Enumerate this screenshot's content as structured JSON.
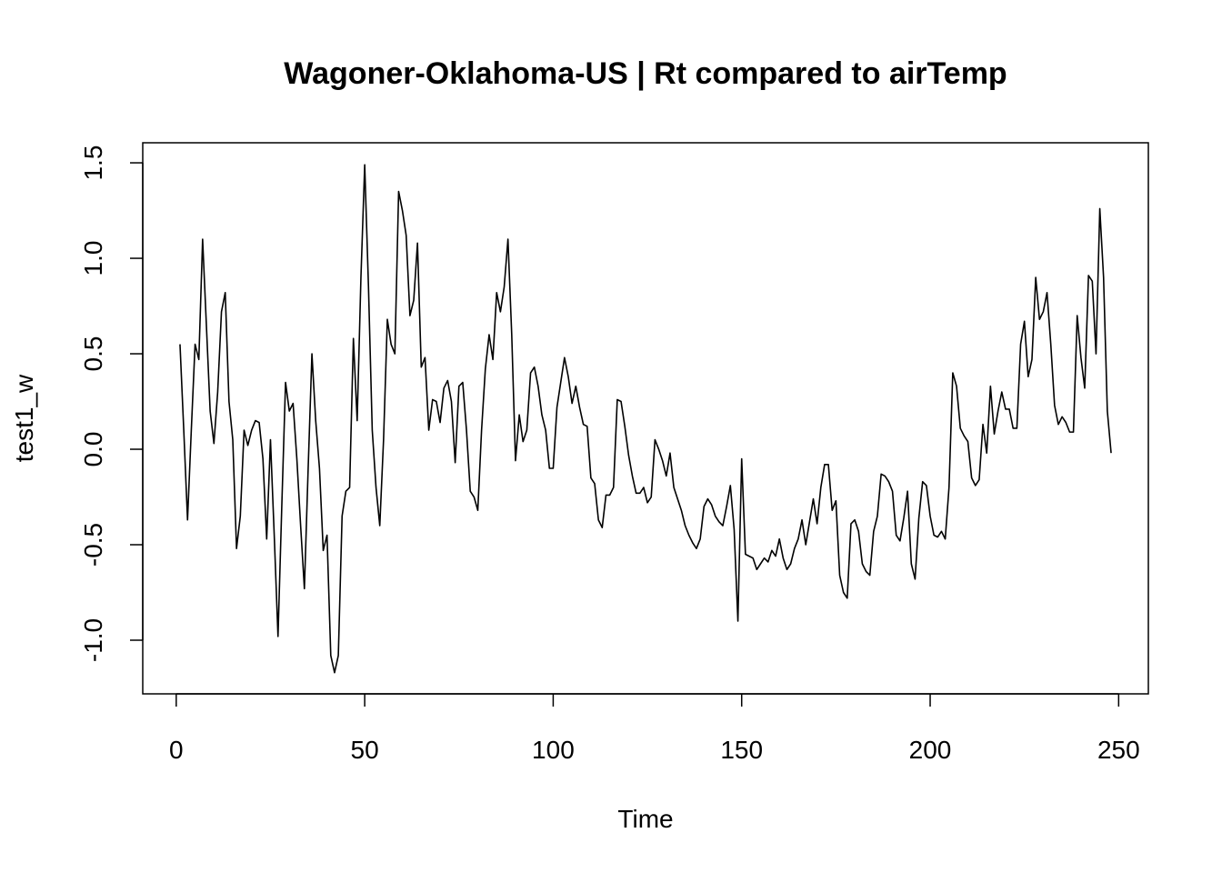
{
  "chart_data": {
    "type": "line",
    "title": "Wagoner-Oklahoma-US | Rt compared to airTemp",
    "x_label": "Time",
    "y_label": "test1_w",
    "color": "#000000",
    "x": [
      1,
      2,
      3,
      4,
      5,
      6,
      7,
      8,
      9,
      10,
      11,
      12,
      13,
      14,
      15,
      16,
      17,
      18,
      19,
      20,
      21,
      22,
      23,
      24,
      25,
      26,
      27,
      28,
      29,
      30,
      31,
      32,
      33,
      34,
      35,
      36,
      37,
      38,
      39,
      40,
      41,
      42,
      43,
      44,
      45,
      46,
      47,
      48,
      49,
      50,
      51,
      52,
      53,
      54,
      55,
      56,
      57,
      58,
      59,
      60,
      61,
      62,
      63,
      64,
      65,
      66,
      67,
      68,
      69,
      70,
      71,
      72,
      73,
      74,
      75,
      76,
      77,
      78,
      79,
      80,
      81,
      82,
      83,
      84,
      85,
      86,
      87,
      88,
      89,
      90,
      91,
      92,
      93,
      94,
      95,
      96,
      97,
      98,
      99,
      100,
      101,
      102,
      103,
      104,
      105,
      106,
      107,
      108,
      109,
      110,
      111,
      112,
      113,
      114,
      115,
      116,
      117,
      118,
      119,
      120,
      121,
      122,
      123,
      124,
      125,
      126,
      127,
      128,
      129,
      130,
      131,
      132,
      133,
      134,
      135,
      136,
      137,
      138,
      139,
      140,
      141,
      142,
      143,
      144,
      145,
      146,
      147,
      148,
      149,
      150,
      151,
      152,
      153,
      154,
      155,
      156,
      157,
      158,
      159,
      160,
      161,
      162,
      163,
      164,
      165,
      166,
      167,
      168,
      169,
      170,
      171,
      172,
      173,
      174,
      175,
      176,
      177,
      178,
      179,
      180,
      181,
      182,
      183,
      184,
      185,
      186,
      187,
      188,
      189,
      190,
      191,
      192,
      193,
      194,
      195,
      196,
      197,
      198,
      199,
      200,
      201,
      202,
      203,
      204,
      205,
      206,
      207,
      208,
      209,
      210,
      211,
      212,
      213,
      214,
      215,
      216,
      217,
      218,
      219,
      220,
      221,
      222,
      223,
      224,
      225,
      226,
      227,
      228,
      229,
      230,
      231,
      232,
      233,
      234,
      235,
      236,
      237,
      238,
      239,
      240,
      241,
      242,
      243,
      244,
      245,
      246,
      247,
      248
    ],
    "values": [
      0.55,
      0.1,
      -0.37,
      0.1,
      0.55,
      0.47,
      1.1,
      0.65,
      0.2,
      0.03,
      0.3,
      0.72,
      0.82,
      0.25,
      0.05,
      -0.52,
      -0.35,
      0.1,
      0.02,
      0.1,
      0.15,
      0.14,
      -0.05,
      -0.47,
      0.05,
      -0.45,
      -0.98,
      -0.3,
      0.35,
      0.2,
      0.24,
      -0.05,
      -0.4,
      -0.73,
      -0.1,
      0.5,
      0.15,
      -0.1,
      -0.53,
      -0.45,
      -1.08,
      -1.17,
      -1.08,
      -0.35,
      -0.22,
      -0.2,
      0.58,
      0.15,
      0.9,
      1.49,
      0.85,
      0.1,
      -0.2,
      -0.4,
      0.05,
      0.68,
      0.55,
      0.5,
      1.35,
      1.25,
      1.12,
      0.7,
      0.78,
      1.08,
      0.43,
      0.48,
      0.1,
      0.26,
      0.25,
      0.14,
      0.32,
      0.36,
      0.25,
      -0.07,
      0.33,
      0.35,
      0.1,
      -0.22,
      -0.25,
      -0.32,
      0.1,
      0.42,
      0.6,
      0.47,
      0.82,
      0.72,
      0.85,
      1.1,
      0.6,
      -0.06,
      0.18,
      0.04,
      0.1,
      0.4,
      0.43,
      0.33,
      0.18,
      0.1,
      -0.1,
      -0.1,
      0.22,
      0.35,
      0.48,
      0.38,
      0.24,
      0.33,
      0.22,
      0.13,
      0.12,
      -0.15,
      -0.18,
      -0.37,
      -0.41,
      -0.24,
      -0.24,
      -0.2,
      0.26,
      0.25,
      0.12,
      -0.03,
      -0.14,
      -0.23,
      -0.23,
      -0.2,
      -0.28,
      -0.25,
      0.05,
      0.0,
      -0.06,
      -0.14,
      -0.02,
      -0.2,
      -0.26,
      -0.32,
      -0.4,
      -0.45,
      -0.49,
      -0.52,
      -0.47,
      -0.3,
      -0.26,
      -0.29,
      -0.35,
      -0.38,
      -0.4,
      -0.3,
      -0.19,
      -0.42,
      -0.9,
      -0.05,
      -0.55,
      -0.56,
      -0.57,
      -0.63,
      -0.6,
      -0.57,
      -0.59,
      -0.53,
      -0.56,
      -0.47,
      -0.57,
      -0.63,
      -0.6,
      -0.52,
      -0.47,
      -0.37,
      -0.5,
      -0.38,
      -0.26,
      -0.39,
      -0.2,
      -0.08,
      -0.08,
      -0.32,
      -0.27,
      -0.66,
      -0.75,
      -0.78,
      -0.39,
      -0.37,
      -0.43,
      -0.6,
      -0.64,
      -0.66,
      -0.43,
      -0.35,
      -0.13,
      -0.14,
      -0.17,
      -0.22,
      -0.45,
      -0.48,
      -0.36,
      -0.22,
      -0.6,
      -0.68,
      -0.36,
      -0.17,
      -0.19,
      -0.35,
      -0.45,
      -0.46,
      -0.43,
      -0.47,
      -0.2,
      0.4,
      0.33,
      0.11,
      0.07,
      0.04,
      -0.15,
      -0.19,
      -0.16,
      0.13,
      -0.02,
      0.33,
      0.08,
      0.2,
      0.3,
      0.21,
      0.21,
      0.11,
      0.11,
      0.55,
      0.67,
      0.38,
      0.47,
      0.9,
      0.68,
      0.72,
      0.82,
      0.55,
      0.23,
      0.13,
      0.17,
      0.14,
      0.09,
      0.09,
      0.7,
      0.48,
      0.32,
      0.91,
      0.88,
      0.5,
      1.26,
      0.9,
      0.2,
      -0.02
    ],
    "xlim": [
      -8.88,
      257.88
    ],
    "ylim": [
      -1.281,
      1.605
    ],
    "xticks": [
      0,
      50,
      100,
      150,
      200,
      250
    ],
    "yticks": [
      {
        "value": -1.0,
        "label": "-1.0"
      },
      -0.5,
      {
        "value": 0.0,
        "label": "0.0"
      },
      0.5,
      {
        "value": 1.0,
        "label": "1.0"
      },
      1.5
    ]
  }
}
